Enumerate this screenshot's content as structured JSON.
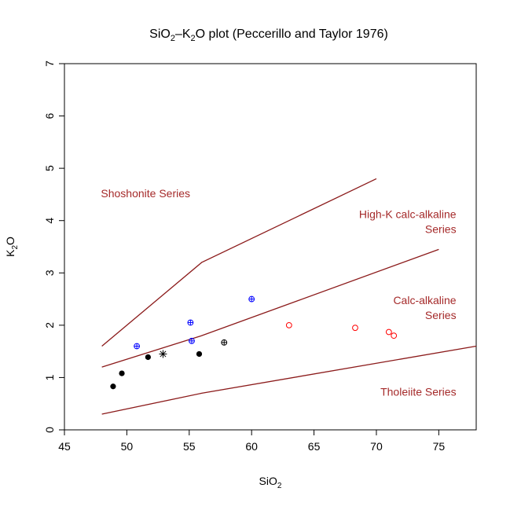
{
  "chart_data": {
    "type": "scatter",
    "title": {
      "prefix": "SiO",
      "sub1": "2",
      "mid": "–K",
      "sub2": "2",
      "suffix": "O plot (Peccerillo and Taylor 1976)"
    },
    "xlabel": {
      "main": "SiO",
      "sub": "2"
    },
    "ylabel": {
      "pre": "K",
      "sub": "2",
      "post": "O"
    },
    "xlim": [
      45,
      78
    ],
    "ylim": [
      0,
      7
    ],
    "x_ticks": [
      "45",
      "50",
      "55",
      "60",
      "65",
      "70",
      "75"
    ],
    "y_ticks": [
      "0",
      "1",
      "2",
      "3",
      "4",
      "5",
      "6",
      "7"
    ],
    "grid": false,
    "colors": {
      "boundary": "#8b1a1a",
      "label": "#a52a2a",
      "blue": "#0000ff",
      "red": "#ff0000",
      "black": "#000000"
    },
    "boundaries": [
      {
        "name": "shoshonite-boundary",
        "points": [
          [
            48,
            1.6
          ],
          [
            56,
            3.2
          ],
          [
            70,
            4.8
          ]
        ]
      },
      {
        "name": "high-k-boundary",
        "points": [
          [
            48,
            1.2
          ],
          [
            56,
            1.8
          ],
          [
            75,
            3.45
          ]
        ]
      },
      {
        "name": "calc-alkaline-boundary",
        "points": [
          [
            48,
            0.3
          ],
          [
            56,
            0.7
          ],
          [
            78,
            1.6
          ]
        ]
      }
    ],
    "series_labels": [
      {
        "name": "shoshonite-label",
        "text": "Shoshonite Series",
        "lines": [
          "Shoshonite Series"
        ],
        "x": 51.5,
        "y": 4.45,
        "anchor": "middle"
      },
      {
        "name": "high-k-label",
        "text": "High-K calc-alkaline Series",
        "lines": [
          "High-K calc-alkaline",
          "Series"
        ],
        "x": 76.4,
        "y": 4.05,
        "anchor": "end"
      },
      {
        "name": "calc-alkaline-label",
        "text": "Calc-alkaline Series",
        "lines": [
          "Calc-alkaline",
          "Series"
        ],
        "x": 76.4,
        "y": 2.4,
        "anchor": "end"
      },
      {
        "name": "tholeiite-label",
        "text": "Tholeiite Series",
        "lines": [
          "Tholeiite Series"
        ],
        "x": 76.4,
        "y": 0.65,
        "anchor": "end"
      }
    ],
    "points": [
      {
        "x": 48.9,
        "y": 0.83,
        "marker": "filled-circle",
        "color": "#000000"
      },
      {
        "x": 49.6,
        "y": 1.08,
        "marker": "filled-circle",
        "color": "#000000"
      },
      {
        "x": 51.7,
        "y": 1.39,
        "marker": "filled-circle",
        "color": "#000000"
      },
      {
        "x": 55.8,
        "y": 1.45,
        "marker": "filled-circle",
        "color": "#000000"
      },
      {
        "x": 52.9,
        "y": 1.45,
        "marker": "asterisk",
        "color": "#000000"
      },
      {
        "x": 57.8,
        "y": 1.67,
        "marker": "crossed-circle",
        "color": "#000000"
      },
      {
        "x": 50.8,
        "y": 1.6,
        "marker": "crossed-circle",
        "color": "#0000ff"
      },
      {
        "x": 55.1,
        "y": 2.05,
        "marker": "crossed-circle",
        "color": "#0000ff"
      },
      {
        "x": 55.2,
        "y": 1.7,
        "marker": "crossed-circle",
        "color": "#0000ff"
      },
      {
        "x": 60.0,
        "y": 2.5,
        "marker": "crossed-circle",
        "color": "#0000ff"
      },
      {
        "x": 63.0,
        "y": 2.0,
        "marker": "open-circle",
        "color": "#ff0000"
      },
      {
        "x": 68.3,
        "y": 1.95,
        "marker": "open-circle",
        "color": "#ff0000"
      },
      {
        "x": 71.0,
        "y": 1.87,
        "marker": "open-circle",
        "color": "#ff0000"
      },
      {
        "x": 71.4,
        "y": 1.8,
        "marker": "open-circle",
        "color": "#ff0000"
      }
    ]
  }
}
